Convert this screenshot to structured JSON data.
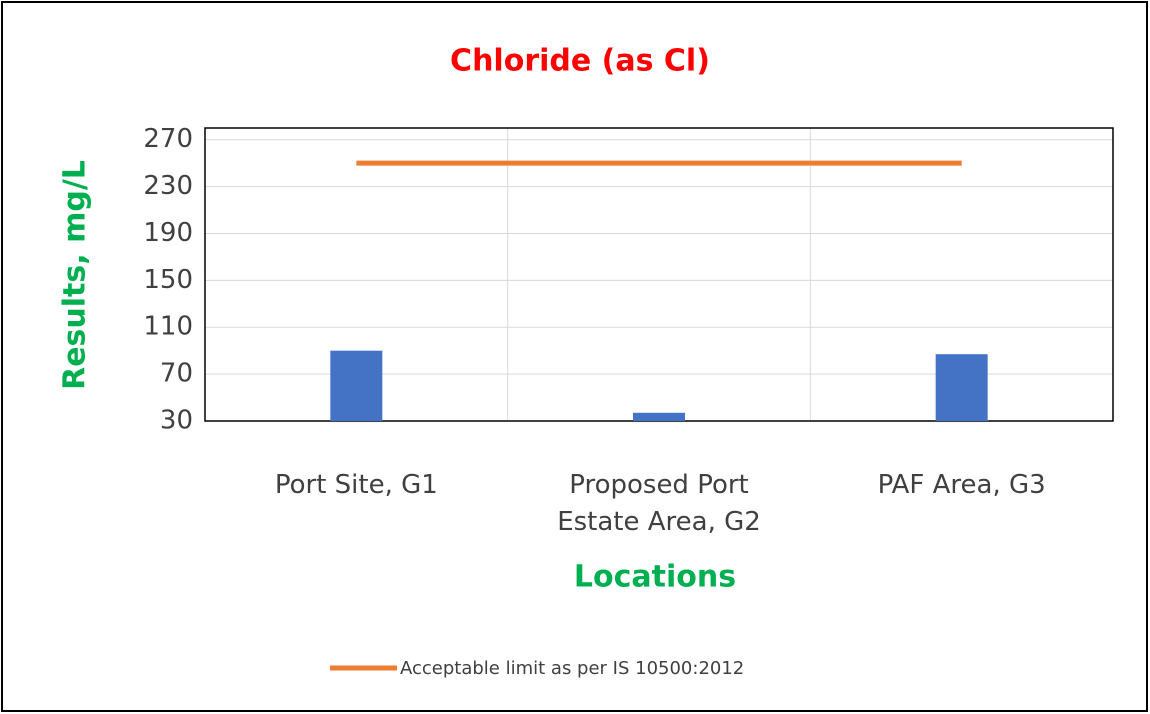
{
  "chart_data": {
    "type": "bar_line",
    "title": "Chloride (as Cl)",
    "x_label": "Locations",
    "y_label": "Results, mg/L",
    "categories": [
      "Port Site, G1",
      "Proposed Port Estate Area, G2",
      "PAF Area, G3"
    ],
    "series": [
      {
        "type": "bar",
        "color": "#4472c4",
        "values": [
          90,
          37,
          87
        ]
      },
      {
        "type": "line",
        "name": "Acceptable limit as per IS 10500:2012",
        "color": "#ed7d31",
        "values": [
          250,
          250,
          250
        ]
      }
    ],
    "ylim": [
      30,
      280
    ],
    "yticks": [
      30,
      70,
      110,
      150,
      190,
      230,
      270
    ],
    "grid": true,
    "legend": "bottom"
  }
}
